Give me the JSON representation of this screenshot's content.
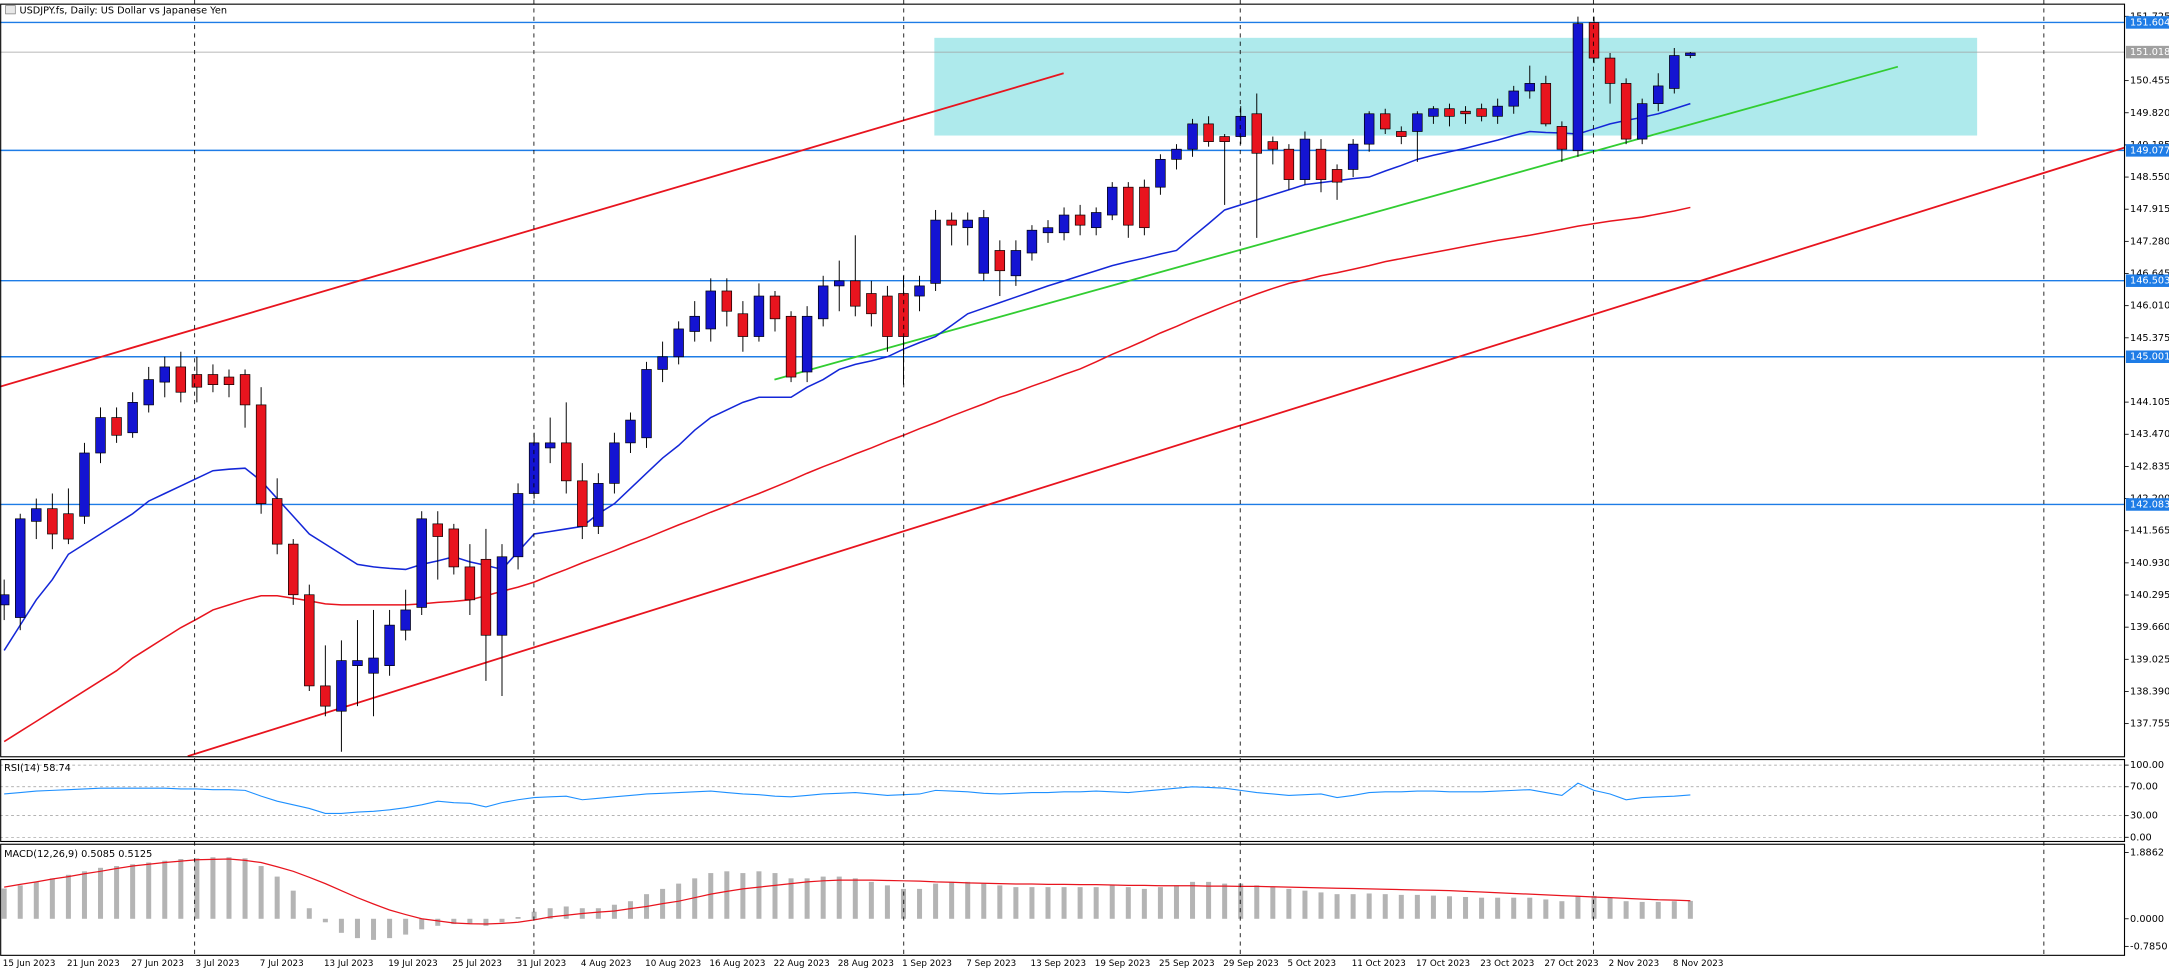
{
  "chart_data": [
    {
      "type": "candlestick",
      "title": "USDJPY.fs, Daily:  US Dollar vs Japanese Yen",
      "categories": [
        "15 Jun 2023",
        null,
        null,
        null,
        "21 Jun 2023",
        null,
        null,
        null,
        "27 Jun 2023",
        null,
        null,
        null,
        "3 Jul 2023",
        null,
        null,
        null,
        "7 Jul 2023",
        null,
        null,
        null,
        "13 Jul 2023",
        null,
        null,
        null,
        "19 Jul 2023",
        null,
        null,
        null,
        "25 Jul 2023",
        null,
        null,
        null,
        "31 Jul 2023",
        null,
        null,
        null,
        "4 Aug 2023",
        null,
        null,
        null,
        "10 Aug 2023",
        null,
        null,
        null,
        "16 Aug 2023",
        null,
        null,
        null,
        "22 Aug 2023",
        null,
        null,
        null,
        "28 Aug 2023",
        null,
        null,
        null,
        "1 Sep 2023",
        null,
        null,
        null,
        "7 Sep 2023",
        null,
        null,
        null,
        "13 Sep 2023",
        null,
        null,
        null,
        "19 Sep 2023",
        null,
        null,
        null,
        "25 Sep 2023",
        null,
        null,
        null,
        "29 Sep 2023",
        null,
        null,
        null,
        "5 Oct 2023",
        null,
        null,
        null,
        "11 Oct 2023",
        null,
        null,
        null,
        "17 Oct 2023",
        null,
        null,
        null,
        "23 Oct 2023",
        null,
        null,
        null,
        "27 Oct 2023",
        null,
        null,
        null,
        "2 Nov 2023",
        null,
        null,
        null,
        "8 Nov 2023",
        null
      ],
      "open": [
        140.1,
        139.85,
        141.75,
        142.0,
        141.9,
        141.85,
        143.1,
        143.8,
        143.5,
        144.05,
        144.5,
        144.8,
        144.65,
        144.65,
        144.6,
        144.65,
        144.05,
        142.2,
        141.3,
        140.3,
        138.5,
        138.0,
        138.9,
        138.75,
        138.9,
        139.6,
        140.05,
        141.7,
        141.6,
        140.85,
        141.0,
        139.5,
        141.05,
        142.3,
        143.2,
        143.3,
        142.55,
        141.65,
        142.5,
        143.3,
        143.4,
        144.75,
        145.0,
        145.5,
        145.55,
        146.3,
        145.85,
        145.4,
        146.2,
        145.8,
        144.7,
        145.75,
        146.4,
        146.5,
        146.25,
        146.2,
        146.25,
        146.2,
        146.45,
        147.7,
        147.55,
        146.65,
        147.1,
        146.6,
        147.05,
        147.45,
        147.45,
        147.8,
        147.55,
        147.8,
        148.35,
        148.35,
        148.35,
        148.9,
        149.1,
        149.6,
        149.35,
        149.35,
        149.8,
        149.25,
        149.1,
        148.5,
        149.1,
        148.7,
        148.7,
        149.2,
        149.8,
        149.45,
        149.45,
        149.75,
        149.9,
        149.85,
        149.9,
        149.75,
        149.95,
        150.25,
        150.4,
        149.55,
        149.07,
        151.6,
        150.9,
        150.4,
        149.3,
        150.0,
        150.3,
        150.95
      ],
      "high": [
        140.6,
        141.9,
        142.2,
        142.3,
        142.4,
        143.3,
        144.0,
        144.0,
        144.3,
        144.8,
        145.0,
        145.1,
        145.0,
        144.85,
        144.75,
        144.75,
        144.4,
        142.6,
        141.4,
        140.5,
        139.3,
        139.4,
        139.8,
        140.0,
        140.0,
        140.4,
        141.95,
        141.95,
        141.7,
        141.3,
        141.6,
        141.3,
        142.5,
        143.5,
        143.8,
        144.1,
        142.9,
        142.7,
        143.5,
        143.9,
        144.9,
        145.3,
        145.7,
        146.1,
        146.55,
        146.55,
        146.1,
        146.45,
        146.3,
        145.9,
        146.0,
        146.6,
        146.9,
        147.4,
        146.5,
        146.4,
        146.6,
        146.6,
        147.9,
        147.85,
        147.85,
        147.9,
        147.3,
        147.3,
        147.6,
        147.7,
        147.95,
        148.0,
        147.95,
        148.45,
        148.45,
        148.5,
        149.0,
        149.2,
        149.7,
        149.75,
        149.4,
        149.95,
        150.2,
        149.35,
        149.2,
        149.45,
        149.3,
        148.8,
        149.3,
        149.85,
        149.9,
        149.55,
        149.85,
        149.95,
        150.0,
        149.95,
        150.0,
        150.1,
        150.35,
        150.75,
        150.55,
        149.65,
        151.72,
        151.72,
        151.0,
        150.5,
        150.1,
        150.6,
        151.1,
        151.02
      ],
      "low": [
        139.8,
        139.6,
        141.4,
        141.2,
        141.3,
        141.7,
        142.9,
        143.3,
        143.4,
        143.9,
        144.2,
        144.1,
        144.1,
        144.3,
        144.2,
        143.6,
        141.9,
        141.1,
        140.1,
        138.4,
        137.9,
        137.2,
        138.1,
        137.9,
        138.7,
        139.4,
        139.9,
        140.6,
        140.7,
        139.9,
        138.6,
        138.3,
        140.8,
        142.2,
        142.9,
        142.3,
        141.4,
        141.5,
        142.3,
        143.1,
        143.2,
        144.5,
        144.85,
        145.3,
        145.3,
        145.6,
        145.1,
        145.3,
        145.5,
        144.5,
        144.5,
        145.6,
        145.9,
        145.8,
        145.6,
        145.1,
        144.45,
        145.9,
        146.3,
        147.2,
        147.2,
        146.5,
        146.2,
        146.4,
        146.9,
        147.25,
        147.3,
        147.4,
        147.4,
        147.7,
        147.35,
        147.4,
        148.2,
        148.7,
        148.95,
        149.15,
        148.0,
        149.2,
        147.35,
        148.8,
        148.3,
        148.4,
        148.25,
        148.1,
        148.55,
        149.05,
        149.4,
        149.2,
        148.85,
        149.6,
        149.55,
        149.6,
        149.65,
        149.6,
        149.8,
        150.1,
        149.55,
        148.85,
        148.95,
        150.8,
        150.0,
        149.2,
        149.2,
        149.85,
        150.2,
        150.9
      ],
      "close": [
        140.3,
        141.8,
        142.0,
        141.5,
        141.4,
        143.1,
        143.8,
        143.45,
        144.1,
        144.55,
        144.8,
        144.3,
        144.4,
        144.45,
        144.45,
        144.05,
        142.1,
        141.3,
        140.3,
        138.5,
        138.1,
        139.0,
        139.0,
        139.05,
        139.7,
        140.0,
        141.8,
        141.45,
        140.85,
        140.2,
        139.5,
        141.05,
        142.3,
        143.3,
        143.3,
        142.55,
        141.65,
        142.5,
        143.3,
        143.75,
        144.75,
        145.0,
        145.55,
        145.8,
        146.3,
        145.9,
        145.4,
        146.2,
        145.75,
        144.6,
        145.8,
        146.4,
        146.5,
        146.0,
        145.85,
        145.4,
        145.4,
        146.4,
        147.7,
        147.6,
        147.7,
        147.75,
        146.7,
        147.1,
        147.5,
        147.55,
        147.8,
        147.6,
        147.85,
        148.35,
        147.6,
        147.55,
        148.9,
        149.1,
        149.6,
        149.25,
        149.25,
        149.75,
        149.02,
        149.1,
        148.5,
        149.3,
        148.5,
        148.45,
        149.2,
        149.8,
        149.5,
        149.35,
        149.8,
        149.9,
        149.75,
        149.8,
        149.75,
        149.95,
        150.25,
        150.4,
        149.6,
        149.1,
        151.58,
        150.9,
        150.4,
        149.3,
        150.0,
        150.35,
        150.95,
        151.0
      ],
      "up_color": "#1414d2",
      "down_color": "#e8141e",
      "lines": [
        {
          "color": "#1427d8",
          "values": [
            139.2,
            139.7,
            140.2,
            140.6,
            141.1,
            141.3,
            141.5,
            141.7,
            141.9,
            142.15,
            142.3,
            142.45,
            142.6,
            142.75,
            142.78,
            142.8,
            142.55,
            142.2,
            141.85,
            141.5,
            141.3,
            141.1,
            140.9,
            140.85,
            140.82,
            140.8,
            140.9,
            140.97,
            141.05,
            140.95,
            140.88,
            140.8,
            141.15,
            141.5,
            141.55,
            141.6,
            141.65,
            141.9,
            142.1,
            142.4,
            142.7,
            143.0,
            143.25,
            143.55,
            143.8,
            143.95,
            144.1,
            144.2,
            144.2,
            144.2,
            144.4,
            144.55,
            144.75,
            144.85,
            144.92,
            145.0,
            145.15,
            145.28,
            145.4,
            145.62,
            145.85,
            145.96,
            146.07,
            146.18,
            146.29,
            146.4,
            146.5,
            146.6,
            146.7,
            146.8,
            146.88,
            146.95,
            147.03,
            147.1,
            147.37,
            147.63,
            147.9,
            148.0,
            148.1,
            148.2,
            148.3,
            148.4,
            148.44,
            148.48,
            148.52,
            148.55,
            148.67,
            148.78,
            148.9,
            148.98,
            149.05,
            149.12,
            149.2,
            149.28,
            149.37,
            149.45,
            149.43,
            149.42,
            149.4,
            149.5,
            149.6,
            149.67,
            149.73,
            149.8,
            149.9,
            150.0
          ]
        },
        {
          "color": "#e8141e",
          "values": [
            137.4,
            137.6,
            137.8,
            138.0,
            138.2,
            138.4,
            138.6,
            138.8,
            139.05,
            139.25,
            139.45,
            139.65,
            139.82,
            140.0,
            140.1,
            140.2,
            140.28,
            140.28,
            140.23,
            140.18,
            140.12,
            140.1,
            140.1,
            140.1,
            140.1,
            140.1,
            140.12,
            140.15,
            140.17,
            140.2,
            140.28,
            140.37,
            140.45,
            140.55,
            140.68,
            140.8,
            140.93,
            141.05,
            141.17,
            141.3,
            141.42,
            141.55,
            141.68,
            141.8,
            141.93,
            142.05,
            142.18,
            142.3,
            142.43,
            142.56,
            142.7,
            142.83,
            142.95,
            143.08,
            143.2,
            143.33,
            143.45,
            143.58,
            143.7,
            143.83,
            143.95,
            144.07,
            144.2,
            144.3,
            144.42,
            144.53,
            144.65,
            144.76,
            144.9,
            145.05,
            145.18,
            145.32,
            145.47,
            145.6,
            145.74,
            145.87,
            146.0,
            146.12,
            146.24,
            146.35,
            146.45,
            146.52,
            146.6,
            146.66,
            146.73,
            146.8,
            146.88,
            146.94,
            147.0,
            147.06,
            147.12,
            147.18,
            147.24,
            147.3,
            147.35,
            147.4,
            147.46,
            147.52,
            147.58,
            147.63,
            147.68,
            147.72,
            147.76,
            147.82,
            147.88,
            147.95
          ]
        }
      ],
      "levels": [
        {
          "value": 151.604,
          "color": "#1e7ce6"
        },
        {
          "value": 149.077,
          "color": "#1e7ce6"
        },
        {
          "value": 146.503,
          "color": "#1e7ce6"
        },
        {
          "value": 145.001,
          "color": "#1e7ce6"
        },
        {
          "value": 142.083,
          "color": "#1e7ce6"
        }
      ],
      "last_price": 151.018,
      "last_price_color": "#a0a0a0",
      "zone": {
        "from": 149.37,
        "to": 151.3,
        "color": "#aeeaec"
      },
      "trendlines": [
        {
          "color": "#e8141e",
          "from": 144.41,
          "to": 150.6
        },
        {
          "color": "#e8141e",
          "from": 137.11,
          "to": 149.15
        },
        {
          "color": "#32cd32",
          "from": 144.55,
          "to": 150.73
        }
      ],
      "ylim": [
        137.1,
        151.91
      ],
      "yticks": [
        137.755,
        {
          "value": 138.39,
          "label": "138.390"
        },
        139.025,
        {
          "value": 139.66,
          "label": "139.660"
        },
        140.295,
        {
          "value": 140.93,
          "label": "140.930"
        },
        141.565,
        {
          "value": 142.2,
          "label": "142.200"
        },
        142.835,
        {
          "value": 143.47,
          "label": "143.470"
        },
        144.105,
        145.375,
        {
          "value": 146.01,
          "label": "146.010"
        },
        146.645,
        {
          "value": 147.28,
          "label": "147.280"
        },
        147.915,
        {
          "value": 148.55,
          "label": "148.550"
        },
        149.185,
        {
          "value": 149.82,
          "label": "149.820"
        },
        150.455,
        151.725
      ]
    },
    {
      "type": "line",
      "title": "RSI(14) 58.74",
      "color": "#1e90ff",
      "values": [
        60,
        62,
        64,
        65,
        66,
        67,
        68,
        68,
        68,
        68,
        68,
        67,
        67,
        66,
        66,
        65,
        57,
        50,
        45,
        40,
        33,
        33,
        35,
        36,
        38,
        41,
        45,
        50,
        48,
        47,
        42,
        48,
        52,
        55,
        56,
        57,
        52,
        54,
        56,
        58,
        60,
        61,
        62,
        63,
        64,
        62,
        60,
        59,
        57,
        56,
        58,
        60,
        61,
        62,
        60,
        58,
        59,
        60,
        65,
        64,
        63,
        61,
        60,
        61,
        62,
        62,
        63,
        63,
        64,
        63,
        62,
        64,
        66,
        68,
        70,
        69,
        68,
        65,
        62,
        60,
        58,
        59,
        60,
        55,
        58,
        62,
        63,
        63,
        64,
        64,
        63,
        63,
        63,
        64,
        65,
        66,
        62,
        58,
        75,
        65,
        60,
        52,
        55,
        56,
        57,
        58.74
      ],
      "ylim": [
        -5.8,
        107.7
      ],
      "yticks": [
        {
          "value": 100,
          "label": "100.00"
        },
        {
          "value": 70,
          "label": "70.00"
        },
        {
          "value": 30,
          "label": "30.00"
        },
        {
          "value": 0,
          "label": "0.00"
        }
      ]
    },
    {
      "type": "macd",
      "title": "MACD(12,26,9) 0.5085 0.5125",
      "color": "#b4b4b4",
      "signal_color": "#e8141e",
      "values": [
        0.86,
        0.95,
        1.05,
        1.15,
        1.25,
        1.35,
        1.45,
        1.5,
        1.55,
        1.6,
        1.65,
        1.7,
        1.72,
        1.75,
        1.75,
        1.72,
        1.5,
        1.2,
        0.8,
        0.3,
        -0.1,
        -0.4,
        -0.55,
        -0.6,
        -0.55,
        -0.45,
        -0.3,
        -0.2,
        -0.15,
        -0.15,
        -0.2,
        -0.1,
        0.05,
        0.2,
        0.3,
        0.35,
        0.3,
        0.3,
        0.4,
        0.5,
        0.7,
        0.85,
        1.0,
        1.15,
        1.3,
        1.35,
        1.3,
        1.35,
        1.3,
        1.15,
        1.15,
        1.2,
        1.2,
        1.15,
        1.05,
        0.95,
        0.85,
        0.85,
        1.0,
        1.05,
        1.05,
        1.0,
        0.95,
        0.9,
        0.9,
        0.9,
        0.9,
        0.9,
        0.9,
        0.95,
        0.9,
        0.85,
        0.9,
        0.95,
        1.05,
        1.05,
        1.0,
        1.0,
        0.95,
        0.9,
        0.85,
        0.8,
        0.75,
        0.7,
        0.7,
        0.72,
        0.7,
        0.68,
        0.68,
        0.66,
        0.64,
        0.62,
        0.6,
        0.6,
        0.6,
        0.6,
        0.55,
        0.5,
        0.65,
        0.65,
        0.6,
        0.5,
        0.48,
        0.48,
        0.5,
        0.5085
      ],
      "signal": [
        0.9,
        0.98,
        1.05,
        1.13,
        1.2,
        1.28,
        1.35,
        1.43,
        1.5,
        1.55,
        1.6,
        1.64,
        1.68,
        1.69,
        1.7,
        1.66,
        1.6,
        1.48,
        1.35,
        1.18,
        1.0,
        0.8,
        0.6,
        0.42,
        0.25,
        0.12,
        0.0,
        -0.06,
        -0.12,
        -0.14,
        -0.15,
        -0.13,
        -0.1,
        -0.03,
        0.05,
        0.1,
        0.15,
        0.19,
        0.22,
        0.29,
        0.35,
        0.43,
        0.5,
        0.6,
        0.7,
        0.78,
        0.85,
        0.9,
        0.95,
        1.0,
        1.05,
        1.08,
        1.1,
        1.1,
        1.1,
        1.09,
        1.08,
        1.07,
        1.05,
        1.04,
        1.02,
        1.01,
        1.0,
        0.99,
        0.99,
        0.98,
        0.98,
        0.97,
        0.97,
        0.96,
        0.95,
        0.95,
        0.94,
        0.94,
        0.94,
        0.93,
        0.93,
        0.92,
        0.92,
        0.91,
        0.9,
        0.89,
        0.88,
        0.87,
        0.86,
        0.85,
        0.84,
        0.83,
        0.82,
        0.81,
        0.8,
        0.78,
        0.76,
        0.74,
        0.72,
        0.7,
        0.68,
        0.66,
        0.64,
        0.62,
        0.6,
        0.58,
        0.56,
        0.54,
        0.53,
        0.5125
      ],
      "ylim": [
        -1.04,
        2.12
      ],
      "yticks": [
        1.8862,
        {
          "value": 0,
          "label": "0.0000"
        },
        {
          "value": -0.785,
          "label": "-0.7850"
        }
      ]
    }
  ]
}
